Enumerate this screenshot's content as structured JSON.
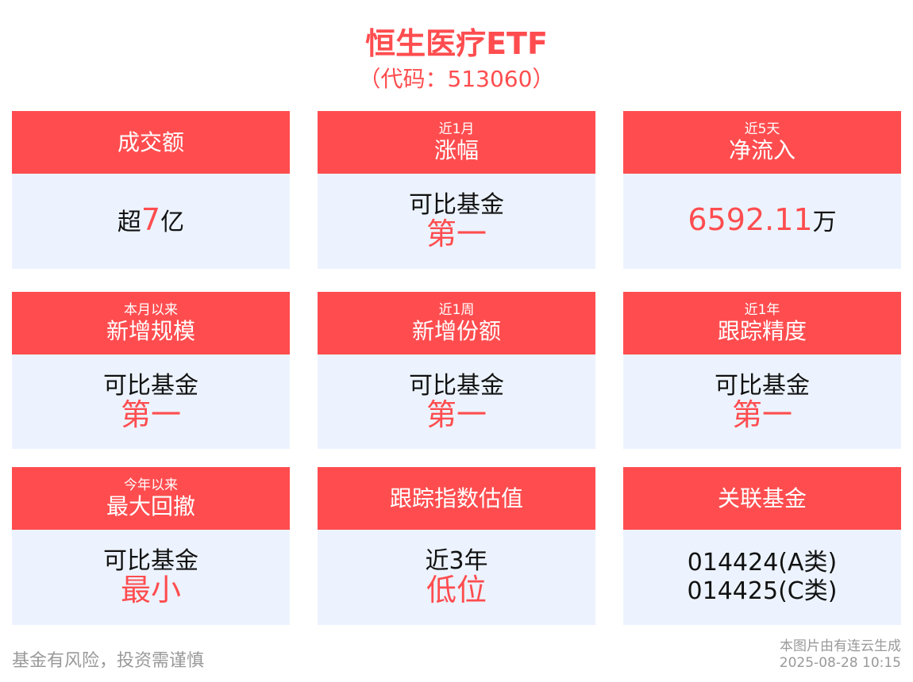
{
  "header": {
    "title": "恒生医疗ETF",
    "code": "（代码：513060）"
  },
  "colors": {
    "accent": "#ff4d4f",
    "card_body": "#ecf3fe"
  },
  "cards": [
    {
      "sub": "",
      "title": "成交额",
      "lines": [
        [
          {
            "t": "超",
            "r": false
          },
          {
            "t": "7",
            "r": true
          },
          {
            "t": "亿",
            "r": false
          }
        ]
      ]
    },
    {
      "sub": "近1月",
      "title": "涨幅",
      "lines": [
        [
          {
            "t": "可比基金",
            "r": false
          }
        ],
        [
          {
            "t": "第一",
            "r": true
          }
        ]
      ]
    },
    {
      "sub": "近5天",
      "title": "净流入",
      "lines": [
        [
          {
            "t": "6592.11",
            "r": true
          },
          {
            "t": "万",
            "r": false
          }
        ]
      ]
    },
    {
      "sub": "本月以来",
      "title": "新增规模",
      "lines": [
        [
          {
            "t": "可比基金",
            "r": false
          }
        ],
        [
          {
            "t": "第一",
            "r": true
          }
        ]
      ]
    },
    {
      "sub": "近1周",
      "title": "新增份额",
      "lines": [
        [
          {
            "t": "可比基金",
            "r": false
          }
        ],
        [
          {
            "t": "第一",
            "r": true
          }
        ]
      ]
    },
    {
      "sub": "近1年",
      "title": "跟踪精度",
      "lines": [
        [
          {
            "t": "可比基金",
            "r": false
          }
        ],
        [
          {
            "t": "第一",
            "r": true
          }
        ]
      ]
    },
    {
      "sub": "今年以来",
      "title": "最大回撤",
      "lines": [
        [
          {
            "t": "可比基金",
            "r": false
          }
        ],
        [
          {
            "t": "最小",
            "r": true
          }
        ]
      ]
    },
    {
      "sub": "",
      "title": "跟踪指数估值",
      "lines": [
        [
          {
            "t": "近3年",
            "r": false
          }
        ],
        [
          {
            "t": "低位",
            "r": true
          }
        ]
      ]
    },
    {
      "sub": "",
      "title": "关联基金",
      "lines": [
        [
          {
            "t": "014424(A类)",
            "r": false
          }
        ],
        [
          {
            "t": "014425(C类)",
            "r": false
          }
        ]
      ]
    }
  ],
  "footer": {
    "risk": "基金有风险，投资需谨慎",
    "source": "本图片由有连云生成",
    "timestamp": "2025-08-28 10:15"
  }
}
